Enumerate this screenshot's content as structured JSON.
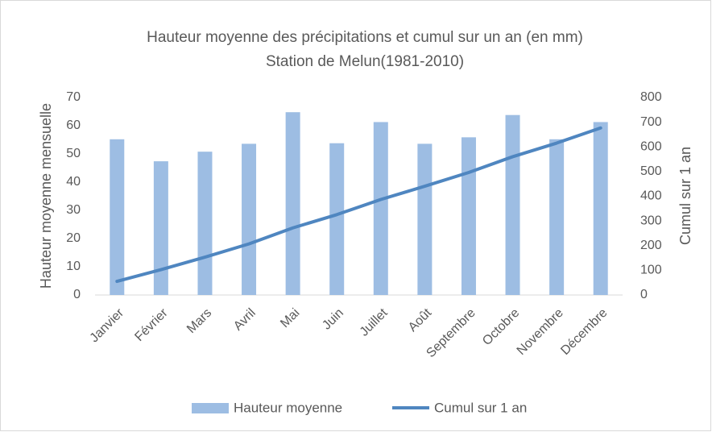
{
  "chart_data": {
    "type": "combo",
    "title": "Hauteur moyenne des précipitations et cumul sur un an (en mm)",
    "subtitle": "Station de Melun(1981-2010)",
    "y_label": "Hauteur moyenne mensuelle",
    "y2_label": "Cumul sur 1 an",
    "categories": [
      "Janvier",
      "Février",
      "Mars",
      "Avril",
      "Mai",
      "Juin",
      "Juillet",
      "Août",
      "Septembre",
      "Octobre",
      "Novembre",
      "Décembre"
    ],
    "series": [
      {
        "name": "Hauteur moyenne",
        "type": "bar",
        "color": "#9dbde3",
        "values": [
          55.2,
          47.4,
          50.8,
          53.6,
          64.8,
          53.8,
          61.3,
          53.6,
          55.9,
          63.8,
          55.2,
          61.3
        ]
      },
      {
        "name": "Cumul sur 1 an",
        "type": "line",
        "axis": "y2",
        "color": "#4f86c0",
        "values": [
          55.2,
          102.6,
          153.4,
          207,
          271.8,
          325.6,
          386.9,
          440.5,
          496.4,
          560.2,
          615.4,
          676.7
        ]
      }
    ],
    "ylim": [
      0,
      70
    ],
    "yticks": [
      0,
      10,
      20,
      30,
      40,
      50,
      60,
      70
    ],
    "y2lim": [
      0,
      800
    ],
    "y2ticks": [
      0,
      100,
      200,
      300,
      400,
      500,
      600,
      700,
      800
    ],
    "grid": false,
    "legend": "bottom"
  }
}
